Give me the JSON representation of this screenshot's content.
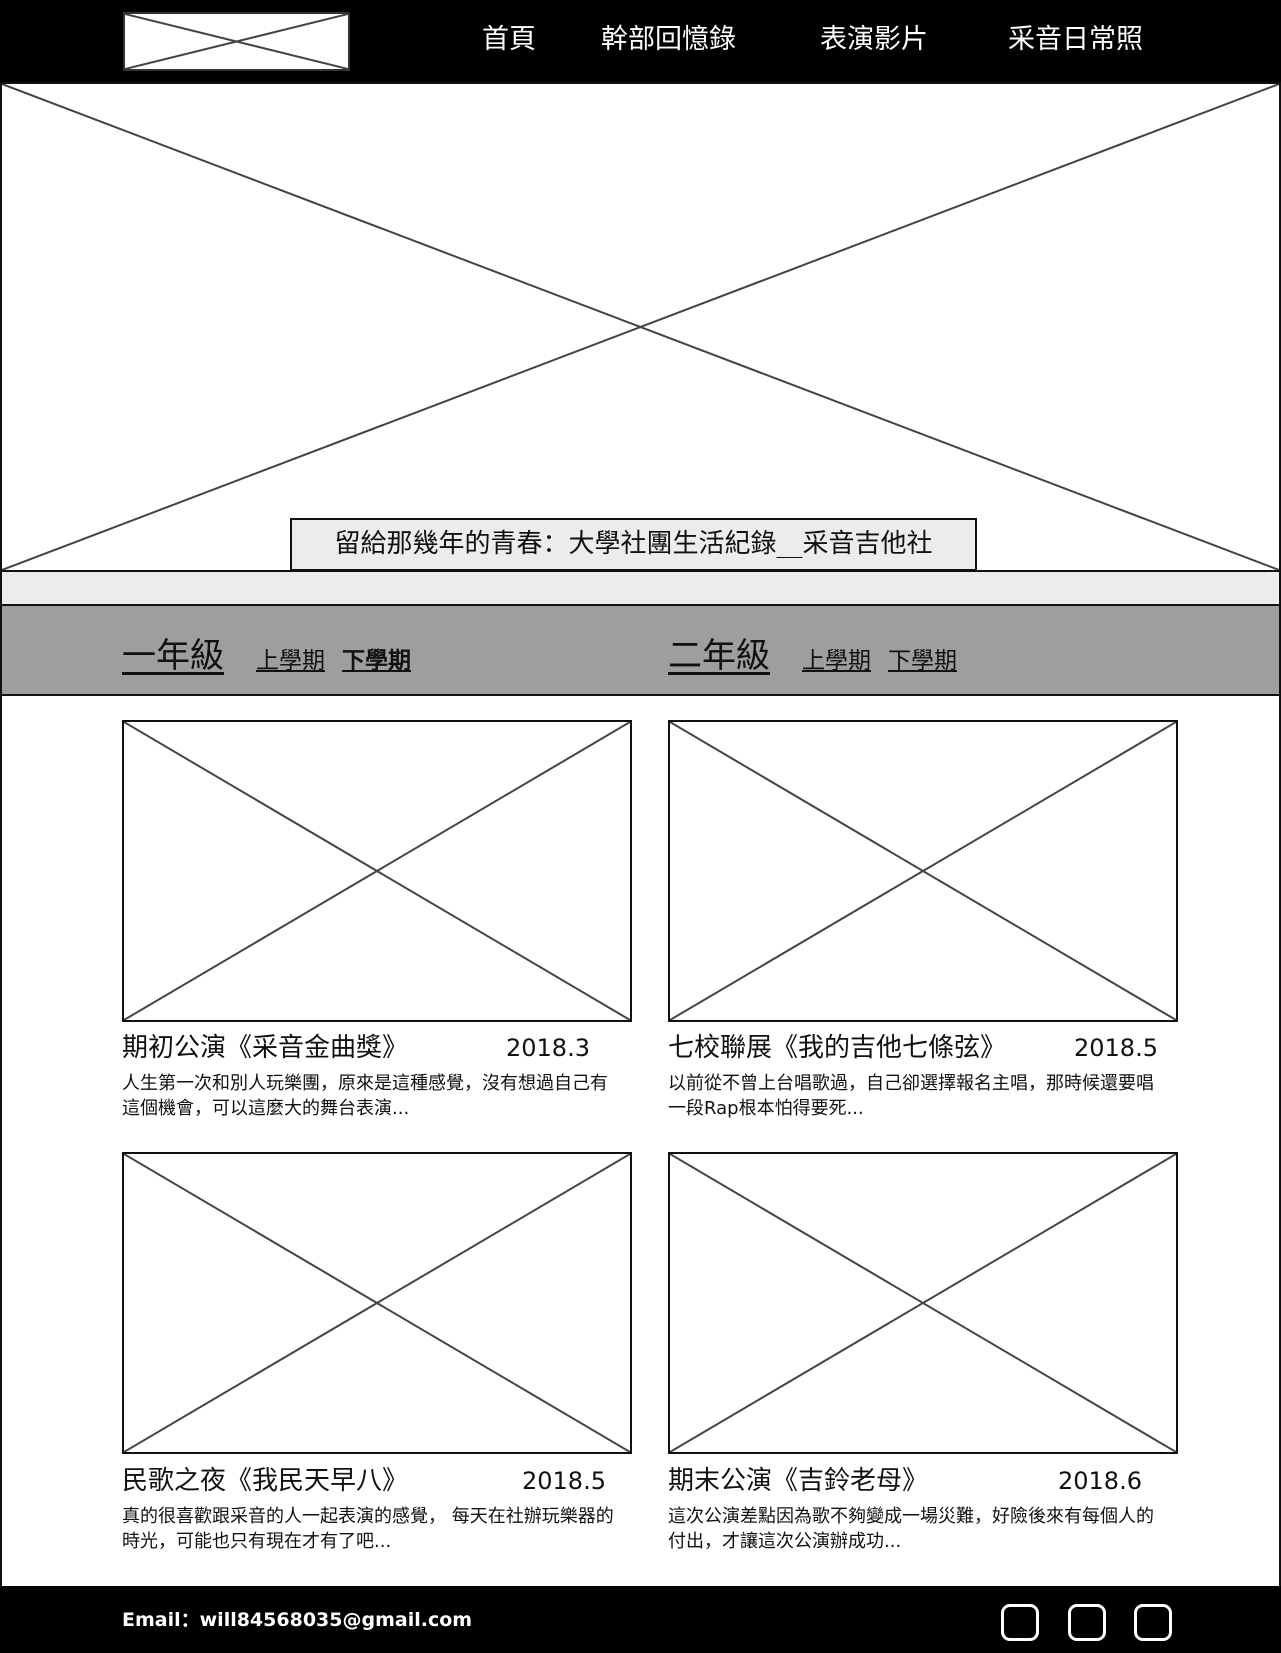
{
  "nav": {
    "items": [
      "首頁",
      "幹部回憶錄",
      "表演影片",
      "采音日常照"
    ]
  },
  "hero": {
    "caption": "留給那幾年的青春：大學社團生活紀錄__采音吉他社"
  },
  "years": [
    {
      "label": "一年級",
      "semesters": [
        "上學期",
        "下學期"
      ],
      "active_semester": "下學期"
    },
    {
      "label": "二年級",
      "semesters": [
        "上學期",
        "下學期"
      ]
    }
  ],
  "cards": [
    {
      "title": "期初公演《采音金曲獎》",
      "date": "2018.3",
      "desc": "人生第一次和別人玩樂團，原來是這種感覺，沒有想過自己有這個機會，可以這麼大的舞台表演..."
    },
    {
      "title": "七校聯展《我的吉他七條弦》",
      "date": "2018.5",
      "desc": "以前從不曾上台唱歌過，自己卻選擇報名主唱，那時候還要唱一段Rap根本怕得要死..."
    },
    {
      "title": "民歌之夜《我民天早八》",
      "date": "2018.5",
      "desc": "真的很喜歡跟采音的人一起表演的感覺， 每天在社辦玩樂器的時光，可能也只有現在才有了吧..."
    },
    {
      "title": "期末公演《吉鈴老母》",
      "date": "2018.6",
      "desc": "這次公演差點因為歌不夠變成一場災難，好險後來有每個人的付出，才讓這次公演辦成功..."
    }
  ],
  "footer": {
    "email": "Email：will84568035@gmail.com",
    "social_icons": [
      "social-icon-1",
      "social-icon-2",
      "social-icon-3"
    ]
  },
  "colors": {
    "header_bg": "#000000",
    "year_bar_bg": "#9e9e9e",
    "strip_bg": "#ececec"
  }
}
